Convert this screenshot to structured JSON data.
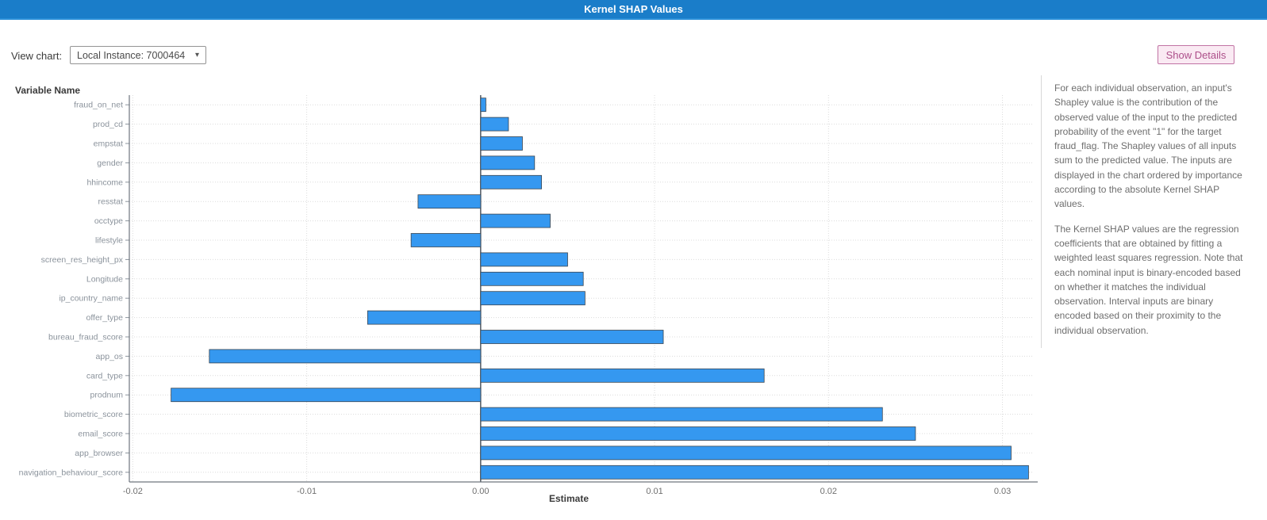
{
  "header": {
    "title": "Kernel SHAP Values"
  },
  "toolbar": {
    "view_chart_label": "View chart:",
    "dropdown_value": "Local Instance: 7000464",
    "dropdown_caret": "▾",
    "show_details_label": "Show Details"
  },
  "colors": {
    "header_bg": "#1a7dc9",
    "bar_fill": "#3598f0",
    "button_accent": "#ad4f8a"
  },
  "chart_data": {
    "type": "bar",
    "orientation": "horizontal",
    "ylabel": "Variable Name",
    "xlabel": "Estimate",
    "categories": [
      "fraud_on_net",
      "prod_cd",
      "empstat",
      "gender",
      "hhincome",
      "resstat",
      "occtype",
      "lifestyle",
      "screen_res_height_px",
      "Longitude",
      "ip_country_name",
      "offer_type",
      "bureau_fraud_score",
      "app_os",
      "card_type",
      "prodnum",
      "biometric_score",
      "email_score",
      "app_browser",
      "navigation_behaviour_score"
    ],
    "values": [
      0.0003,
      0.0016,
      0.0024,
      0.0031,
      0.0035,
      -0.0036,
      0.004,
      -0.004,
      0.005,
      0.0059,
      0.006,
      -0.0065,
      0.0105,
      -0.0156,
      0.0163,
      -0.0178,
      0.0231,
      0.025,
      0.0305,
      0.0315
    ],
    "xticks": [
      -0.02,
      -0.01,
      0.0,
      0.01,
      0.02,
      0.03
    ],
    "xlim": [
      -0.0202,
      0.0318
    ],
    "grid": true,
    "legend": "none"
  },
  "panel": {
    "paragraph1": "For each individual observation, an input's Shapley value is the contribution of the observed value of the input to the predicted probability of the event \"1\" for the target fraud_flag. The Shapley values of all inputs sum to the predicted value. The inputs are displayed in the chart ordered by importance according to the absolute Kernel SHAP values.",
    "paragraph2": "The Kernel SHAP values are the regression coefficients that are obtained by fitting a weighted least squares regression. Note that each nominal input is binary-encoded based on whether it matches the individual observation. Interval inputs are binary encoded based on their proximity to the individual observation."
  }
}
